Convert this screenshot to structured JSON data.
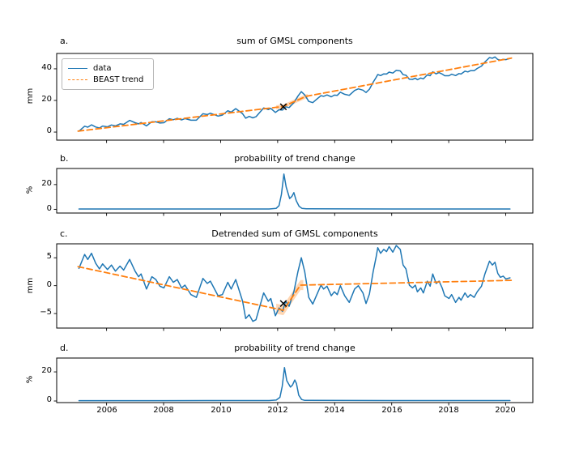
{
  "figure": {
    "size": [
      715,
      558
    ],
    "background": "#ffffff",
    "colors": {
      "data_line": "#1f77b4",
      "trend_line": "#ff7f0e",
      "uncertainty_band": "#ff7f0e",
      "marker": "#000000",
      "axis": "#000000"
    },
    "x_axis": {
      "lim": [
        2004.25,
        2020.95
      ],
      "ticks": [
        2006,
        2008,
        2010,
        2012,
        2014,
        2016,
        2018,
        2020
      ],
      "tick_labels": [
        "2006",
        "2008",
        "2010",
        "2012",
        "2014",
        "2016",
        "2018",
        "2020"
      ]
    },
    "legend": {
      "panel": "a",
      "position": "upper left",
      "entries": [
        {
          "label": "data",
          "color": "#1f77b4",
          "style": "solid"
        },
        {
          "label": "BEAST trend",
          "color": "#ff7f0e",
          "style": "dashed"
        }
      ]
    }
  },
  "chart_data": [
    {
      "id": "a",
      "letter": "a.",
      "title": "sum of GMSL components",
      "type": "line",
      "ylabel": "mm",
      "ylim": [
        -5.1,
        49.7
      ],
      "yticks": [
        0,
        20,
        40
      ],
      "ytick_labels": [
        "0",
        "20",
        "40"
      ],
      "changepoint_marker": {
        "x": 2012.2,
        "y": 16.0,
        "symbol": "x"
      },
      "uncertainty_band": {
        "x0": 2011.95,
        "x1": 2013.05,
        "half_width": 1.3
      },
      "series": [
        {
          "name": "data",
          "style": "solid",
          "color": "#1f77b4",
          "x": [
            2005.03,
            2005.23,
            2005.34,
            2005.47,
            2005.62,
            2005.75,
            2005.86,
            2006.03,
            2006.17,
            2006.31,
            2006.47,
            2006.6,
            2006.81,
            2007.0,
            2007.12,
            2007.21,
            2007.4,
            2007.59,
            2007.73,
            2007.87,
            2008.01,
            2008.2,
            2008.34,
            2008.48,
            2008.63,
            2008.75,
            2008.96,
            2009.15,
            2009.38,
            2009.53,
            2009.64,
            2009.91,
            2010.06,
            2010.25,
            2010.37,
            2010.53,
            2010.77,
            2010.88,
            2011.0,
            2011.13,
            2011.24,
            2011.51,
            2011.67,
            2011.76,
            2011.92,
            2012.05,
            2012.17,
            2012.28,
            2012.4,
            2012.57,
            2012.71,
            2012.83,
            2012.95,
            2013.09,
            2013.23,
            2013.4,
            2013.52,
            2013.61,
            2013.73,
            2013.88,
            2013.99,
            2014.09,
            2014.2,
            2014.35,
            2014.51,
            2014.7,
            2014.83,
            2014.99,
            2015.1,
            2015.22,
            2015.35,
            2015.45,
            2015.51,
            2015.61,
            2015.72,
            2015.82,
            2015.91,
            2016.04,
            2016.16,
            2016.3,
            2016.4,
            2016.5,
            2016.62,
            2016.73,
            2016.83,
            2016.9,
            2017.02,
            2017.11,
            2017.25,
            2017.35,
            2017.44,
            2017.56,
            2017.66,
            2017.77,
            2017.86,
            2018.01,
            2018.1,
            2018.24,
            2018.36,
            2018.43,
            2018.57,
            2018.67,
            2018.76,
            2018.89,
            2019.0,
            2019.15,
            2019.27,
            2019.43,
            2019.53,
            2019.62,
            2019.72,
            2019.81,
            2019.91,
            2020.0,
            2020.15
          ],
          "y": [
            0.6,
            3.7,
            3.1,
            4.6,
            3.2,
            2.6,
            3.8,
            3.3,
            4.5,
            3.9,
            5.2,
            4.9,
            7.4,
            5.9,
            5.2,
            6.0,
            3.9,
            6.6,
            6.5,
            5.7,
            5.9,
            8.4,
            7.8,
            8.7,
            7.7,
            8.5,
            7.5,
            7.5,
            11.6,
            11.1,
            11.9,
            10.1,
            10.7,
            13.5,
            12.6,
            14.8,
            11.6,
            8.8,
            9.9,
            9.0,
            9.7,
            15.3,
            14.2,
            15.0,
            12.4,
            14.1,
            13.9,
            16.0,
            15.5,
            18.6,
            22.7,
            25.6,
            23.5,
            19.4,
            18.6,
            21.2,
            23.0,
            22.6,
            23.5,
            22.3,
            23.4,
            23.2,
            25.2,
            23.9,
            23.2,
            26.3,
            27.3,
            26.5,
            25.0,
            27.1,
            31.5,
            34.4,
            36.4,
            35.7,
            36.8,
            36.7,
            37.9,
            37.3,
            39.0,
            38.7,
            36.3,
            35.9,
            33.4,
            33.3,
            34.1,
            33.1,
            34.2,
            33.6,
            36.2,
            35.6,
            38.1,
            36.8,
            37.6,
            36.7,
            35.6,
            35.6,
            36.6,
            35.7,
            37.0,
            36.7,
            38.5,
            38.0,
            38.8,
            38.8,
            40.2,
            41.7,
            44.3,
            47.1,
            46.7,
            47.5,
            45.9,
            45.5,
            46.0,
            45.8,
            46.5
          ]
        },
        {
          "name": "BEAST trend",
          "style": "dashed",
          "color": "#ff7f0e",
          "x": [
            2005.0,
            2012.2,
            2013.0,
            2020.2
          ],
          "y": [
            0.6,
            16.2,
            22.6,
            46.8
          ]
        }
      ]
    },
    {
      "id": "b",
      "letter": "b.",
      "title": "probability of trend change",
      "type": "line",
      "ylabel": "%",
      "ylim": [
        -3,
        33
      ],
      "yticks": [
        0,
        20
      ],
      "ytick_labels": [
        "0",
        "20"
      ],
      "series": [
        {
          "name": "probability",
          "style": "solid",
          "color": "#1f77b4",
          "x": [
            2005.03,
            2008.0,
            2011.7,
            2011.95,
            2012.05,
            2012.13,
            2012.22,
            2012.3,
            2012.42,
            2012.5,
            2012.57,
            2012.65,
            2012.75,
            2012.85,
            2013.0,
            2016.0,
            2020.15
          ],
          "y": [
            0.25,
            0.25,
            0.3,
            0.8,
            3.0,
            12.0,
            28.5,
            18.0,
            8.7,
            10.5,
            13.5,
            7.0,
            2.5,
            0.8,
            0.4,
            0.3,
            0.3
          ]
        }
      ]
    },
    {
      "id": "c",
      "letter": "c.",
      "title": "Detrended sum of GMSL components",
      "type": "line",
      "ylabel": "mm",
      "ylim": [
        -7.6,
        7.5
      ],
      "yticks": [
        -5,
        0,
        5
      ],
      "ytick_labels": [
        "−5",
        "0",
        "5"
      ],
      "changepoint_marker": {
        "x": 2012.2,
        "y": -3.2,
        "symbol": "x"
      },
      "uncertainty_band": {
        "x0": 2011.95,
        "x1": 2012.9,
        "half_width": 0.9
      },
      "series": [
        {
          "name": "data",
          "style": "solid",
          "color": "#1f77b4",
          "x": [
            2005.03,
            2005.23,
            2005.34,
            2005.47,
            2005.62,
            2005.75,
            2005.86,
            2006.03,
            2006.17,
            2006.31,
            2006.47,
            2006.6,
            2006.81,
            2007.0,
            2007.12,
            2007.21,
            2007.4,
            2007.59,
            2007.73,
            2007.87,
            2008.01,
            2008.2,
            2008.34,
            2008.48,
            2008.63,
            2008.75,
            2008.96,
            2009.15,
            2009.38,
            2009.53,
            2009.64,
            2009.91,
            2010.06,
            2010.25,
            2010.37,
            2010.53,
            2010.77,
            2010.88,
            2011.0,
            2011.13,
            2011.24,
            2011.51,
            2011.67,
            2011.76,
            2011.92,
            2012.05,
            2012.17,
            2012.28,
            2012.4,
            2012.57,
            2012.71,
            2012.83,
            2012.95,
            2013.09,
            2013.23,
            2013.4,
            2013.52,
            2013.61,
            2013.73,
            2013.88,
            2013.99,
            2014.09,
            2014.2,
            2014.35,
            2014.51,
            2014.7,
            2014.83,
            2014.99,
            2015.1,
            2015.22,
            2015.35,
            2015.45,
            2015.51,
            2015.61,
            2015.72,
            2015.82,
            2015.91,
            2016.04,
            2016.16,
            2016.3,
            2016.4,
            2016.5,
            2016.62,
            2016.73,
            2016.83,
            2016.9,
            2017.02,
            2017.11,
            2017.25,
            2017.35,
            2017.44,
            2017.56,
            2017.66,
            2017.77,
            2017.86,
            2018.01,
            2018.1,
            2018.24,
            2018.36,
            2018.43,
            2018.57,
            2018.67,
            2018.76,
            2018.89,
            2019.0,
            2019.15,
            2019.27,
            2019.43,
            2019.53,
            2019.62,
            2019.72,
            2019.81,
            2019.91,
            2020.0,
            2020.15
          ],
          "y": [
            3.1,
            5.6,
            4.7,
            5.8,
            4.0,
            3.0,
            3.9,
            2.9,
            3.7,
            2.6,
            3.5,
            2.8,
            4.7,
            2.6,
            1.6,
            2.1,
            -0.6,
            1.6,
            1.1,
            -0.1,
            -0.4,
            1.6,
            0.6,
            1.1,
            -0.4,
            0.1,
            -1.6,
            -2.1,
            1.3,
            0.4,
            0.8,
            -1.8,
            -1.6,
            0.6,
            -0.6,
            1.1,
            -2.8,
            -5.9,
            -5.2,
            -6.4,
            -6.1,
            -1.3,
            -2.8,
            -2.3,
            -5.4,
            -4.0,
            -4.6,
            -2.8,
            -3.7,
            -1.1,
            2.5,
            5.0,
            2.5,
            -2.1,
            -3.3,
            -1.3,
            0.1,
            -0.6,
            -0.1,
            -1.8,
            -1.1,
            -1.6,
            0.0,
            -1.8,
            -3.0,
            -0.6,
            0.0,
            -1.3,
            -3.2,
            -1.5,
            2.5,
            5.0,
            6.8,
            5.8,
            6.5,
            6.1,
            7.0,
            6.0,
            7.2,
            6.5,
            3.7,
            3.0,
            0.1,
            -0.4,
            0.1,
            -1.1,
            -0.4,
            -1.3,
            0.8,
            -0.1,
            2.1,
            0.4,
            0.8,
            -0.4,
            -1.8,
            -2.3,
            -1.6,
            -3.0,
            -2.1,
            -2.6,
            -1.3,
            -2.1,
            -1.6,
            -2.1,
            -1.1,
            -0.1,
            2.1,
            4.4,
            3.7,
            4.2,
            2.2,
            1.5,
            1.7,
            1.2,
            1.4
          ]
        },
        {
          "name": "BEAST trend",
          "style": "dashed",
          "color": "#ff7f0e",
          "x": [
            2005.0,
            2012.2,
            2012.8,
            2020.2
          ],
          "y": [
            3.4,
            -4.4,
            0.1,
            0.95
          ]
        }
      ]
    },
    {
      "id": "d",
      "letter": "d.",
      "title": "probability of trend change",
      "type": "line",
      "ylabel": "%",
      "ylim": [
        -1.1,
        29.5
      ],
      "yticks": [
        0,
        20
      ],
      "ytick_labels": [
        "0",
        "20"
      ],
      "series": [
        {
          "name": "probability",
          "style": "solid",
          "color": "#1f77b4",
          "x": [
            2005.03,
            2008.0,
            2011.7,
            2011.95,
            2012.08,
            2012.16,
            2012.24,
            2012.32,
            2012.45,
            2012.52,
            2012.6,
            2012.66,
            2012.74,
            2012.84,
            2012.95,
            2016.0,
            2020.15
          ],
          "y": [
            0.25,
            0.25,
            0.3,
            0.6,
            2.5,
            10.0,
            23.0,
            14.0,
            9.5,
            11.0,
            14.4,
            12.0,
            4.0,
            1.0,
            0.4,
            0.3,
            0.3
          ]
        }
      ]
    }
  ]
}
